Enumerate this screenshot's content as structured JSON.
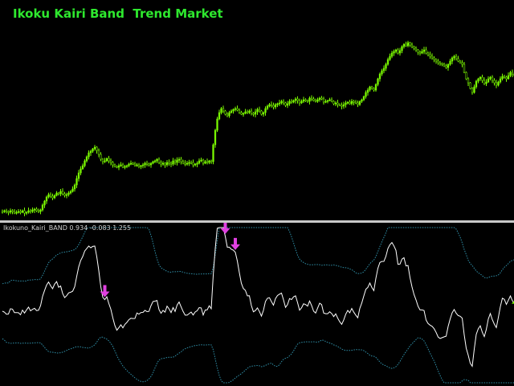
{
  "main": {
    "title": "Ikoku Kairi Band  Trend Market",
    "title_color": "#2ee82e",
    "candle_color": "#7cfc00",
    "prices": [
      263,
      262,
      263,
      264,
      262,
      263,
      265,
      264,
      263,
      264,
      262,
      265,
      264,
      262,
      263,
      261,
      260,
      262,
      263,
      261,
      255,
      250,
      245,
      242,
      244,
      246,
      243,
      240,
      241,
      238,
      241,
      243,
      242,
      240,
      238,
      235,
      230,
      222,
      215,
      210,
      206,
      200,
      195,
      190,
      188,
      185,
      183,
      187,
      192,
      198,
      201,
      200,
      197,
      200,
      202,
      205,
      207,
      208,
      206,
      205,
      208,
      207,
      206,
      204,
      203,
      204,
      206,
      205,
      207,
      206,
      205,
      203,
      204,
      205,
      203,
      201,
      200,
      198,
      202,
      204,
      203,
      205,
      202,
      203,
      204,
      200,
      202,
      199,
      198,
      201,
      203,
      204,
      203,
      202,
      202,
      205,
      204,
      203,
      200,
      199,
      203,
      201,
      202,
      200,
      201,
      180,
      162,
      148,
      140,
      135,
      138,
      142,
      144,
      140,
      138,
      136,
      135,
      137,
      140,
      142,
      141,
      139,
      140,
      138,
      141,
      142,
      139,
      136,
      138,
      142,
      140,
      135,
      132,
      130,
      131,
      133,
      130,
      129,
      128,
      126,
      128,
      131,
      129,
      126,
      127,
      125,
      123,
      125,
      128,
      126,
      124,
      125,
      126,
      122,
      123,
      125,
      126,
      124,
      122,
      123,
      127,
      126,
      125,
      124,
      126,
      129,
      128,
      130,
      131,
      132,
      130,
      128,
      127,
      129,
      126,
      127,
      128,
      130,
      126,
      124,
      120,
      115,
      112,
      108,
      110,
      112,
      105,
      98,
      92,
      88,
      85,
      80,
      74,
      70,
      66,
      64,
      62,
      66,
      63,
      58,
      55,
      57,
      53,
      56,
      58,
      60,
      62,
      65,
      66,
      64,
      62,
      66,
      68,
      70,
      72,
      74,
      76,
      78,
      79,
      80,
      82,
      84,
      80,
      76,
      72,
      70,
      73,
      76,
      78,
      80,
      90,
      98,
      103,
      110,
      115,
      108,
      101,
      98,
      96,
      100,
      104,
      102,
      98,
      96,
      100,
      103,
      106,
      102,
      98,
      95,
      96,
      98,
      94,
      90,
      92,
      94,
      90,
      88,
      86,
      84,
      84,
      82,
      80,
      82,
      85,
      88,
      86,
      84,
      82,
      80,
      82,
      84,
      86,
      82,
      80,
      82,
      86,
      90,
      92,
      96,
      98,
      100,
      104,
      103,
      100
    ]
  },
  "indicator": {
    "name": "Ikokuno_Kairi_BAND",
    "values_text": "0.934 -0.083 1.255",
    "label_color": "#d0d0d0",
    "main_line_color": "#ffffff",
    "band_color": "#2f8fa8",
    "sell_arrow_color": "#e040e0",
    "buy_arrow_color": "#7cfc00"
  },
  "arrows": [
    {
      "type": "sell",
      "bar": 51
    },
    {
      "type": "sell",
      "bar": 111
    },
    {
      "type": "sell",
      "bar": 116
    },
    {
      "type": "buy",
      "bar": 256
    }
  ]
}
